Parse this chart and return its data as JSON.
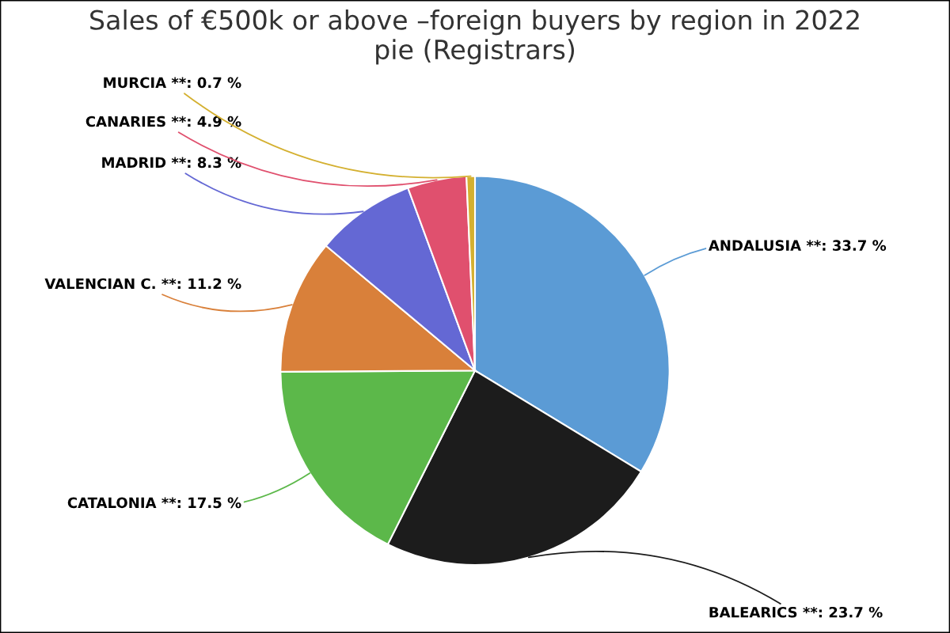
{
  "chart_data": {
    "type": "pie",
    "title": "Sales of €500k or above –foreign buyers by region in 2022\npie (Registrars)",
    "categories": [
      "ANDALUSIA **",
      "BALEARICS **",
      "CATALONIA **",
      "VALENCIAN C. **",
      "MADRID **",
      "CANARIES **",
      "MURCIA **"
    ],
    "values": [
      33.7,
      23.7,
      17.5,
      11.2,
      8.3,
      4.9,
      0.7
    ],
    "value_labels": [
      "33.7 %",
      "23.7 %",
      "17.5 %",
      "11.2 %",
      "8.3 %",
      "4.9 %",
      "0.7 %"
    ],
    "colors": [
      "#5b9bd5",
      "#1c1c1c",
      "#5cb84a",
      "#d9803a",
      "#6468d4",
      "#e0506e",
      "#d4b030"
    ],
    "legend": false
  }
}
